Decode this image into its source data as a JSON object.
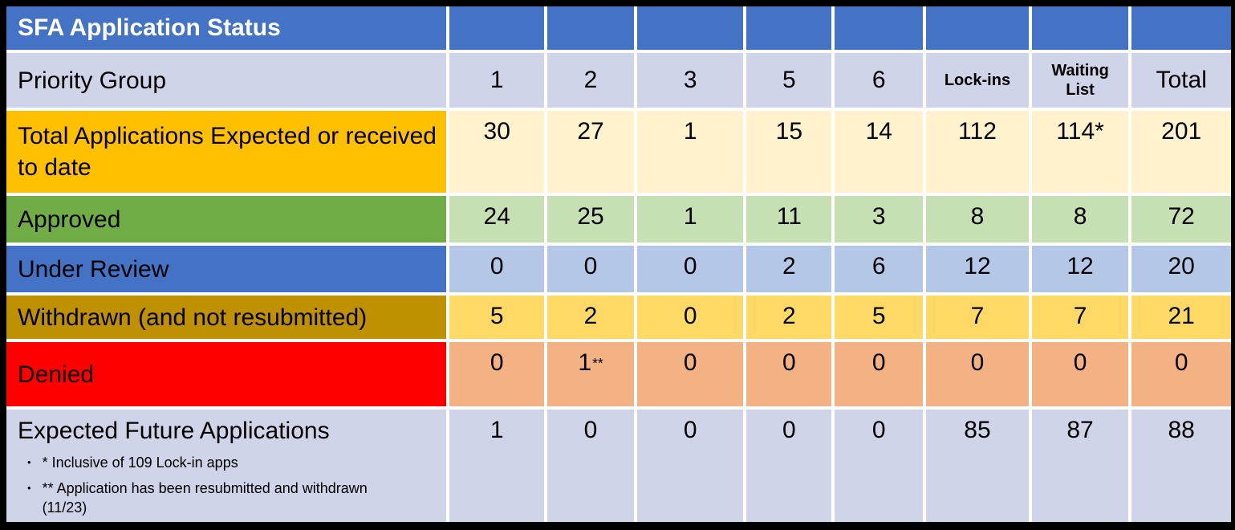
{
  "colors": {
    "title_blue": "#4472C4",
    "lavender": "#CFD4E8",
    "gold": "#FFC000",
    "cream": "#FFF2CC",
    "green": "#70AD47",
    "light_green": "#C6E0B4",
    "blue": "#4472C4",
    "light_blue": "#B4C7E7",
    "dark_gold": "#BF9000",
    "yellow": "#FFD966",
    "red": "#FF0000",
    "peach": "#F4B183"
  },
  "chart_data": {
    "type": "table",
    "title": "SFA Application Status",
    "header": {
      "row_label": "Priority Group",
      "columns": [
        "1",
        "2",
        "3",
        "5",
        "6",
        "Lock-ins",
        "Waiting List",
        "Total"
      ]
    },
    "rows": [
      {
        "label": "Total Applications Expected or received to date",
        "values": [
          "30",
          "27",
          "1",
          "15",
          "14",
          "112",
          "114*",
          "201"
        ]
      },
      {
        "label": "Approved",
        "values": [
          "24",
          "25",
          "1",
          "11",
          "3",
          "8",
          "8",
          "72"
        ]
      },
      {
        "label": "Under Review",
        "values": [
          "0",
          "0",
          "0",
          "2",
          "6",
          "12",
          "12",
          "20"
        ]
      },
      {
        "label": "Withdrawn (and not resubmitted)",
        "values": [
          "5",
          "2",
          "0",
          "2",
          "5",
          "7",
          "7",
          "21"
        ]
      },
      {
        "label": "Denied",
        "values": [
          "0",
          "1",
          "0",
          "0",
          "0",
          "0",
          "0",
          "0"
        ],
        "value_suffix": "**"
      },
      {
        "label": "Expected Future Applications",
        "values": [
          "1",
          "0",
          "0",
          "0",
          "0",
          "85",
          "87",
          "88"
        ],
        "footnotes": [
          "* Inclusive of 109 Lock-in apps",
          "** Application has been resubmitted and withdrawn (11/23)"
        ]
      }
    ],
    "footnote_bullet": "•"
  }
}
